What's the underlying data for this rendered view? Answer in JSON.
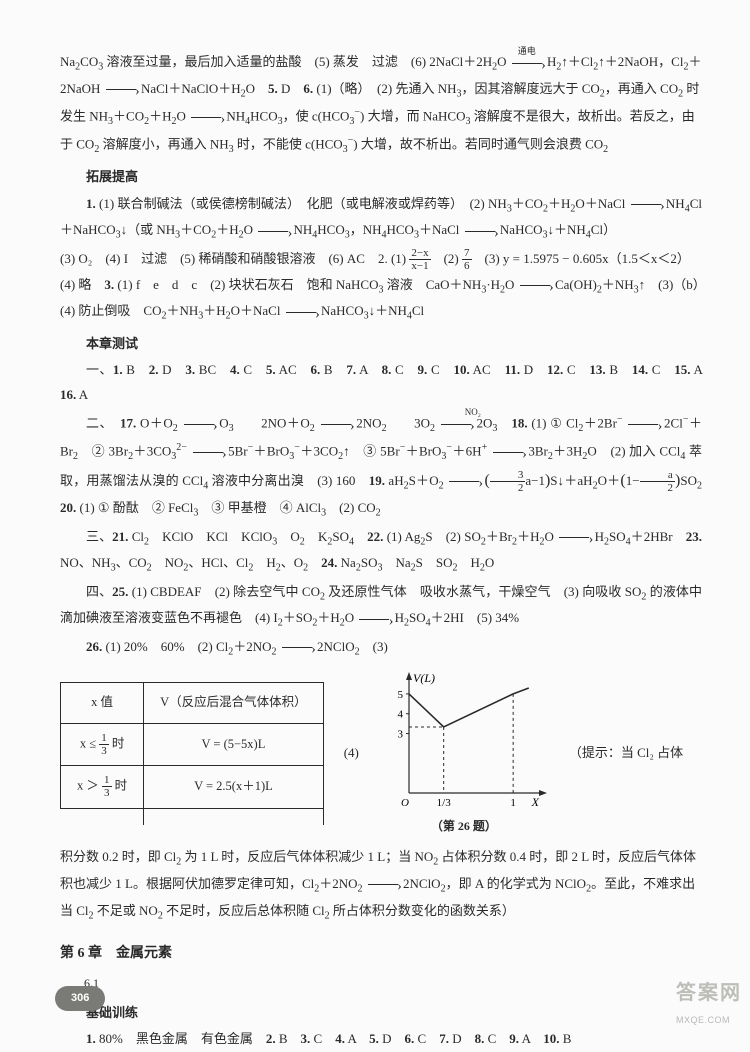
{
  "p1": "Na₂CO₃ 溶液至过量，最后加入适量的盐酸　(5) 蒸发　过滤　(6) 2NaCl＋2H₂O ──→ H₂↑＋Cl₂↑＋2NaOH，Cl₂＋2NaOH ──→ NaCl＋NaClO＋H₂O　5. D　6. (1)（略）　(2) 先通入 NH₃，因其溶解度远大于 CO₂，再通入 CO₂ 时发生 NH₃＋CO₂＋H₂O ──→ NH₄HCO₃，使 c(HCO₃⁻) 大增，而 NaHCO₃ 溶解度不是很大，故析出。若反之，由于 CO₂ 溶解度小，再通入 NH₃ 时，不能使 c(HCO₃⁻) 大增，故不析出。若同时通气则会浪费 CO₂",
  "arrow_label_dian": "通电",
  "h_tuozhan": "拓展提高",
  "p2": "1. (1) 联合制碱法（或侯德榜制碱法）　化肥（或电解液或焊药等）　(2) NH₃＋CO₂＋H₂O＋NaCl ──→ NH₄Cl＋NaHCO₃↓（或 NH₃＋CO₂＋H₂O ──→ NH₄HCO₃，NH₄HCO₃＋NaCl ──→ NaHCO₃↓＋NH₄Cl）",
  "p3a": "(3) O₂　(4) I　过滤　(5) 稀硝酸和硝酸银溶液　(6) AC　2. (1) ",
  "p3b": "　(2) ",
  "p3c": "　(3) y = 1.5975 − 0.605x（1.5＜x＜2）　(4) 略　3. (1) f　e　d　c　(2) 块状石灰石　饱和 NaHCO₃ 溶液　CaO＋NH₃·H₂O ──→ Ca(OH)₂＋NH₃↑　(3)（b）　(4) 防止倒吸　CO₂＋NH₃＋H₂O＋NaCl ──→ NaHCO₃↓＋NH₄Cl",
  "frac1": {
    "n": "2−x",
    "d": "x−1"
  },
  "frac2": {
    "n": "7",
    "d": "6"
  },
  "h_benzhang": "本章测试",
  "p4": "一、1. B　2. D　3. BC　4. C　5. AC　6. B　7. A　8. C　9. C　10. AC　11. D　12. C　13. B　14. C　15. A　16. A",
  "p5a": "二、　17. O＋O₂ ──→ O₃　　2NO＋O₂ ──→ 2NO₂　　3O₂ ──→ 2O₃　18. (1) ① Cl₂＋2Br⁻ ──→ 2Cl⁻＋Br₂　② 3Br₂＋3CO₃²⁻ ──→ 5Br⁻＋BrO₃⁻＋3CO₂↑　③ 5Br⁻＋BrO₃⁻＋6H⁺ ──→ 3Br₂＋3H₂O　(2) 加入 CCl₄ 萃取，用蒸馏法从溴的 CCl₄ 溶液中分离出溴　(3) 160　19. aH₂S＋O₂ ──→ ",
  "arrow_label_NO2": "NO₂",
  "arrow_label_light": "光",
  "p5b": "S↓＋aH₂O＋",
  "frac3": {
    "n": "3",
    "d": "2"
  },
  "frac4": {
    "n": "a",
    "d": "2"
  },
  "p5c": "SO₂　20. (1) ① 酚酞　② FeCl₃　③ 甲基橙　④ AlCl₃　(2) CO₂",
  "p6": "三、21. Cl₂　KClO　KCl　KClO₃　O₂　K₂SO₄　22. (1) Ag₂S　(2) SO₂＋Br₂＋H₂O ──→ H₂SO₄＋2HBr　23. NO、NH₃、CO₂　NO₂、HCl、Cl₂　H₂、O₂　24. Na₂SO₃　Na₂S　SO₂　H₂O",
  "p7": "四、25. (1) CBDEAF　(2) 除去空气中 CO₂ 及还原性气体　吸收水蒸气，干燥空气　(3) 向吸收 SO₂ 的液体中滴加碘液至溶液变蓝色不再褪色　(4) I₂＋SO₂＋H₂O ──→ H₂SO₄＋2HI　(5) 34%",
  "p8": "26. (1) 20%　60%　(2) Cl₂＋2NO₂ ──→ 2NClO₂　(3)",
  "table": {
    "h1": "x 值",
    "h2": "V（反应后混合气体体积）",
    "r1c1_pre": "x ≤ ",
    "r1c1_post": " 时",
    "r1c2": "V = (5−5x)L",
    "r2c1_pre": "x ＞ ",
    "r2c1_post": " 时",
    "r2c2": "V = 2.5(x＋1)L"
  },
  "frac13": {
    "n": "1",
    "d": "3"
  },
  "fig_mid": "(4)",
  "fig_right": "（提示：当 Cl₂ 占体",
  "chart": {
    "y_label": "V(L)",
    "x_label": "X",
    "y_ticks": [
      "5",
      "4",
      "3"
    ],
    "x_ticks": [
      "1/3",
      "1"
    ],
    "caption": "（第 26 题）",
    "axis_color": "#2a2a2a",
    "line_width": 1.6,
    "data_points": [
      [
        0,
        5
      ],
      [
        0.333,
        3.333
      ],
      [
        1,
        5
      ]
    ],
    "xlim": [
      0,
      1.2
    ],
    "ylim": [
      0,
      5.5
    ]
  },
  "p9": "积分数 0.2 时，即 Cl₂ 为 1 L 时，反应后气体体积减少 1 L；当 NO₂ 占体积分数 0.4 时，即 2 L 时，反应后气体体积也减少 1 L。根据阿伏加德罗定律可知，Cl₂＋2NO₂ ──→ 2NClO₂，即 A 的化学式为 NClO₂。至此，不难求出当 Cl₂ 不足或 NO₂ 不足时，反应后总体积随 Cl₂ 所占体积分数变化的函数关系）",
  "section6": "第 6 章　金属元素",
  "sub61": "6.1",
  "h_jichu": "基础训练",
  "p10": "1. 80%　黑色金属　有色金属　2. B　3. C　4. A　5. D　6. C　7. D　8. C　9. A　10. B",
  "page_num": "306",
  "wm1": "答案网",
  "wm2": "MXQE.COM"
}
